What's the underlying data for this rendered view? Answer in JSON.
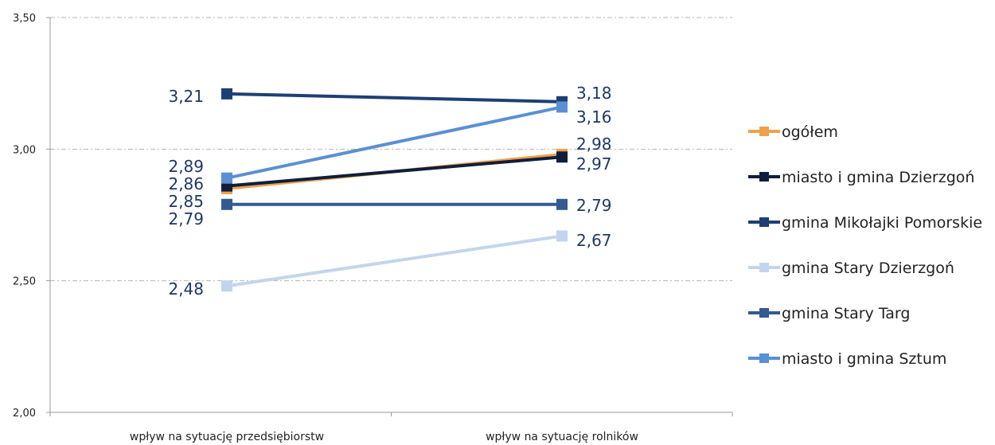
{
  "chart_data": {
    "type": "line",
    "categories": [
      "wpływ na sytuację przedsiębiorstw",
      "wpływ na sytuację rolników"
    ],
    "ylim": [
      2.0,
      3.5
    ],
    "yticks": [
      "2,00",
      "2,50",
      "3,00",
      "3,50"
    ],
    "grid": true,
    "legend_position": "right",
    "series": [
      {
        "name": "ogółem",
        "values": [
          2.85,
          2.98
        ],
        "labels": [
          "2,85",
          "2,98"
        ],
        "color": "#f0a04b"
      },
      {
        "name": "miasto i gmina Dzierzgoń",
        "values": [
          2.86,
          2.97
        ],
        "labels": [
          "2,86",
          "2,97"
        ],
        "color": "#0f1e3c"
      },
      {
        "name": "gmina Mikołajki Pomorskie",
        "values": [
          3.21,
          3.18
        ],
        "labels": [
          "3,21",
          "3,18"
        ],
        "color": "#1e3f73"
      },
      {
        "name": "gmina Stary Dzierzgoń",
        "values": [
          2.48,
          2.67
        ],
        "labels": [
          "2,48",
          "2,67"
        ],
        "color": "#c3d5ec"
      },
      {
        "name": "gmina Stary Targ",
        "values": [
          2.79,
          2.79
        ],
        "labels": [
          "2,79",
          "2,79"
        ],
        "color": "#345b8f"
      },
      {
        "name": "miasto i gmina Sztum",
        "values": [
          2.89,
          3.16
        ],
        "labels": [
          "2,89",
          "3,16"
        ],
        "color": "#5b8fd3"
      }
    ]
  }
}
